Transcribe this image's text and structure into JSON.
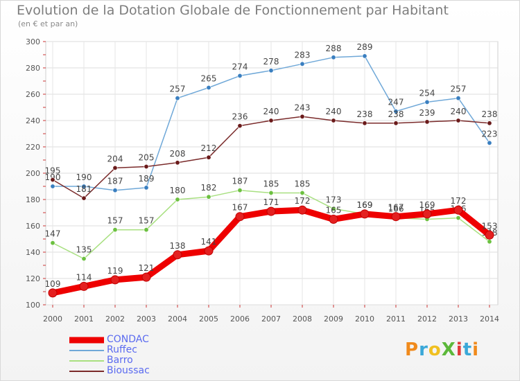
{
  "title": "Evolution de la Dotation Globale de Fonctionnement par Habitant",
  "subtitle": "(en € et par an)",
  "logo": {
    "text": "ProXiti",
    "colors": [
      "#f08a1c",
      "#3aa8d8",
      "#f0c020",
      "#5cb83a",
      "#e03a3a",
      "#3aa8d8",
      "#f08a1c"
    ]
  },
  "chart_data": {
    "type": "line",
    "x": [
      2000,
      2001,
      2002,
      2003,
      2004,
      2005,
      2006,
      2007,
      2008,
      2009,
      2010,
      2011,
      2012,
      2013,
      2014
    ],
    "xticks": [
      "2000",
      "2001",
      "2002",
      "2003",
      "2004",
      "2005",
      "2006",
      "2007",
      "2008",
      "2009",
      "2010",
      "2011",
      "2012",
      "2013",
      "2014"
    ],
    "ylim": [
      100,
      300
    ],
    "yticks": [
      100,
      120,
      140,
      160,
      180,
      200,
      220,
      240,
      260,
      280,
      300
    ],
    "grid": true,
    "legend_position": "bottom-left",
    "series": [
      {
        "name": "CONDAC",
        "color": "#ee0000",
        "marker": "#e42020",
        "emphasis": true,
        "values": [
          109,
          114,
          119,
          121,
          138,
          141,
          167,
          171,
          172,
          165,
          169,
          167,
          169,
          172,
          153
        ],
        "labels": [
          "109",
          "114",
          "119",
          "121",
          "138",
          "141",
          "167",
          "171",
          "172",
          "165",
          "169",
          "167",
          "169",
          "172",
          "153"
        ]
      },
      {
        "name": "Ruffec",
        "color": "#6fa8d8",
        "marker": "#3a7fc0",
        "values": [
          190,
          190,
          187,
          189,
          257,
          265,
          274,
          278,
          283,
          288,
          289,
          247,
          254,
          257,
          223
        ],
        "labels": [
          "190",
          "190",
          "187",
          "189",
          "257",
          "265",
          "274",
          "278",
          "283",
          "288",
          "289",
          "247",
          "254",
          "257",
          "223"
        ]
      },
      {
        "name": "Barro",
        "color": "#a8e080",
        "marker": "#6cc040",
        "values": [
          147,
          135,
          157,
          157,
          180,
          182,
          187,
          185,
          185,
          173,
          169,
          166,
          165,
          166,
          148
        ],
        "labels": [
          "147",
          "135",
          "157",
          "157",
          "180",
          "182",
          "187",
          "185",
          "185",
          "173",
          "169",
          "166",
          "165",
          "166",
          "148"
        ]
      },
      {
        "name": "Bioussac",
        "color": "#7a2a2a",
        "marker": "#6a1a1a",
        "values": [
          195,
          181,
          204,
          205,
          208,
          212,
          236,
          240,
          243,
          240,
          238,
          238,
          239,
          240,
          238
        ],
        "labels": [
          "195",
          "181",
          "204",
          "205",
          "208",
          "212",
          "236",
          "240",
          "243",
          "240",
          "238",
          "238",
          "239",
          "240",
          "238"
        ]
      }
    ]
  }
}
